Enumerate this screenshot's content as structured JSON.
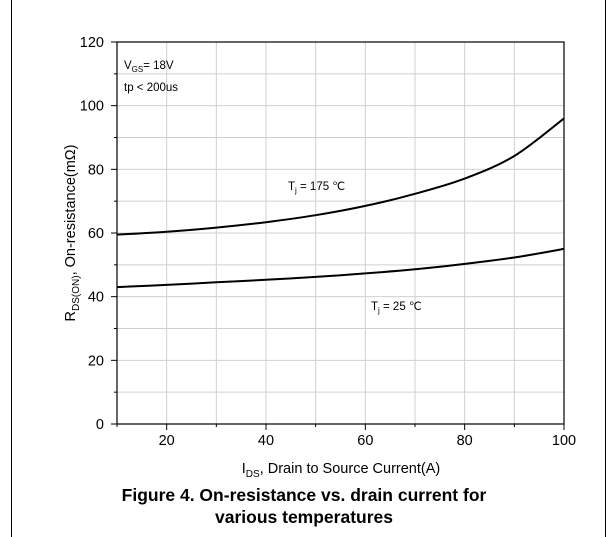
{
  "caption": {
    "line1": "Figure 4. On-resistance vs. drain current for",
    "line2": "various temperatures"
  },
  "chart_data": {
    "type": "line",
    "xlabel": {
      "main": "I",
      "sub": "DS",
      "rest": ", Drain to Source Current(A)"
    },
    "ylabel": {
      "main": "R",
      "sub": "DS(ON)",
      "rest": ", On-resistance(mΩ)"
    },
    "xlim": [
      10,
      100
    ],
    "ylim": [
      0,
      120
    ],
    "xticks": [
      20,
      40,
      60,
      80,
      100
    ],
    "yticks": [
      0,
      20,
      40,
      60,
      80,
      100,
      120
    ],
    "grid": true,
    "conditions": {
      "vgs": {
        "main": "V",
        "sub": "GS",
        "rest": "= 18V"
      },
      "tp": "tp < 200us"
    },
    "series": [
      {
        "name": {
          "main": "T",
          "sub": "j",
          "rest": " = 175 ℃"
        },
        "color": "#000000",
        "x": [
          10,
          20,
          30,
          40,
          50,
          60,
          70,
          80,
          90,
          100
        ],
        "y": [
          59.5,
          60.4,
          61.7,
          63.4,
          65.6,
          68.5,
          72.3,
          77.1,
          84.2,
          96
        ]
      },
      {
        "name": {
          "main": "T",
          "sub": "j",
          "rest": " = 25 ℃"
        },
        "color": "#000000",
        "x": [
          10,
          20,
          30,
          40,
          50,
          60,
          70,
          80,
          90,
          100
        ],
        "y": [
          43,
          43.7,
          44.5,
          45.3,
          46.2,
          47.3,
          48.6,
          50.3,
          52.3,
          55
        ]
      }
    ]
  }
}
